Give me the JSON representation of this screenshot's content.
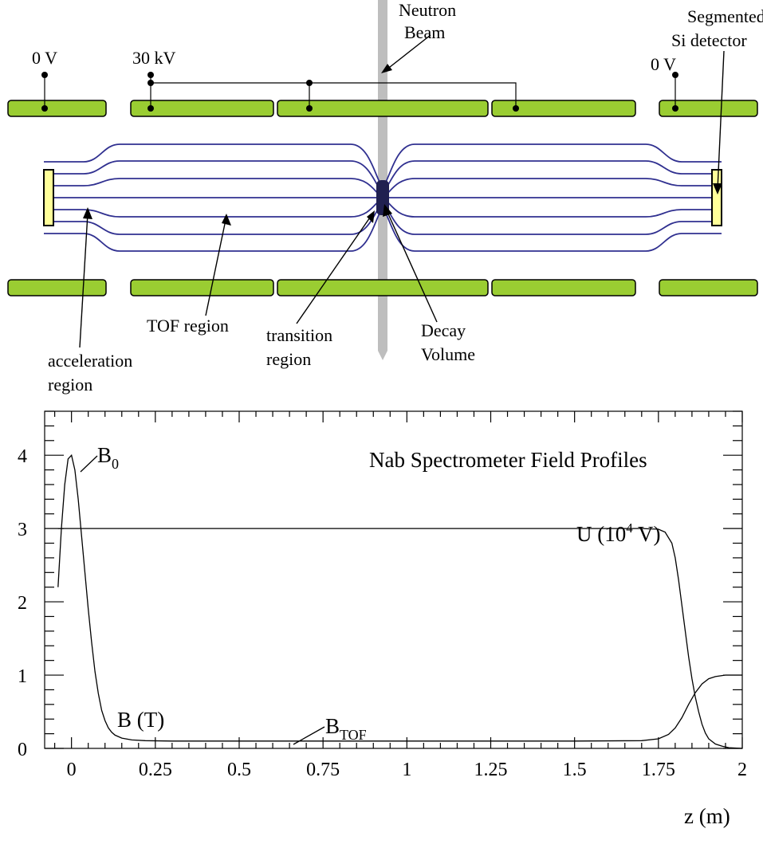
{
  "colors": {
    "electrode": "#9ACD32",
    "detector": "#FFFF99",
    "field_lines": "#303090",
    "beam": "#BEBEBE"
  },
  "diagram": {
    "labels": {
      "neutron_beam": [
        "Neutron",
        "Beam"
      ],
      "segmented_detector": [
        "Segmented",
        "Si detector"
      ],
      "voltage_left": "0 V",
      "voltage_30kv": "30 kV",
      "voltage_right": "0 V",
      "tof_region": "TOF region",
      "acceleration_region": [
        "acceleration",
        "region"
      ],
      "transition_region": [
        "transition",
        "region"
      ],
      "decay_volume": [
        "Decay",
        "Volume"
      ]
    }
  },
  "chart_data": {
    "type": "line",
    "title": "Nab Spectrometer Field Profiles",
    "xlabel": "z (m)",
    "ylabel": "",
    "xlim": [
      -0.08,
      2.0
    ],
    "ylim": [
      0,
      4.6
    ],
    "x_ticks": [
      "0",
      "0.25",
      "0.5",
      "0.75",
      "1",
      "1.25",
      "1.5",
      "1.75",
      "2"
    ],
    "x_tick_values": [
      0,
      0.25,
      0.5,
      0.75,
      1,
      1.25,
      1.5,
      1.75,
      2
    ],
    "y_ticks": [
      "0",
      "1",
      "2",
      "3",
      "4"
    ],
    "y_tick_values": [
      0,
      1,
      2,
      3,
      4
    ],
    "series": [
      {
        "name": "B (T)",
        "x": [
          -0.04,
          -0.03,
          -0.02,
          -0.01,
          0.0,
          0.01,
          0.02,
          0.03,
          0.04,
          0.05,
          0.06,
          0.07,
          0.08,
          0.09,
          0.1,
          0.11,
          0.12,
          0.13,
          0.15,
          0.18,
          0.22,
          0.3,
          0.5,
          0.75,
          1.0,
          1.25,
          1.5,
          1.7,
          1.75,
          1.78,
          1.8,
          1.82,
          1.84,
          1.86,
          1.88,
          1.9,
          1.92,
          1.95,
          2.0
        ],
        "y": [
          2.2,
          3.0,
          3.6,
          3.95,
          4.0,
          3.8,
          3.4,
          2.9,
          2.4,
          1.9,
          1.45,
          1.05,
          0.75,
          0.52,
          0.38,
          0.28,
          0.22,
          0.18,
          0.14,
          0.115,
          0.105,
          0.1,
          0.1,
          0.1,
          0.1,
          0.1,
          0.1,
          0.105,
          0.13,
          0.19,
          0.28,
          0.42,
          0.6,
          0.76,
          0.88,
          0.95,
          0.98,
          1.0,
          1.0
        ]
      },
      {
        "name": "U (10^4 V)",
        "x": [
          -0.04,
          0.5,
          1.0,
          1.5,
          1.7,
          1.75,
          1.77,
          1.79,
          1.8,
          1.81,
          1.82,
          1.83,
          1.84,
          1.85,
          1.86,
          1.87,
          1.88,
          1.89,
          1.9,
          1.92,
          1.94,
          1.96,
          2.0
        ],
        "y": [
          3.0,
          3.0,
          3.0,
          3.0,
          3.0,
          2.99,
          2.95,
          2.8,
          2.6,
          2.3,
          1.95,
          1.6,
          1.25,
          0.95,
          0.7,
          0.5,
          0.33,
          0.21,
          0.13,
          0.06,
          0.03,
          0.01,
          0.0
        ]
      }
    ],
    "annotations": {
      "b0_main": "B",
      "b0_sub": "0",
      "btof_main": "B",
      "btof_sub": "TOF",
      "u_label_pre": "U (10",
      "u_label_sup": "4",
      "u_label_post": " V)",
      "b_label": "B (T)"
    },
    "grid": false
  }
}
